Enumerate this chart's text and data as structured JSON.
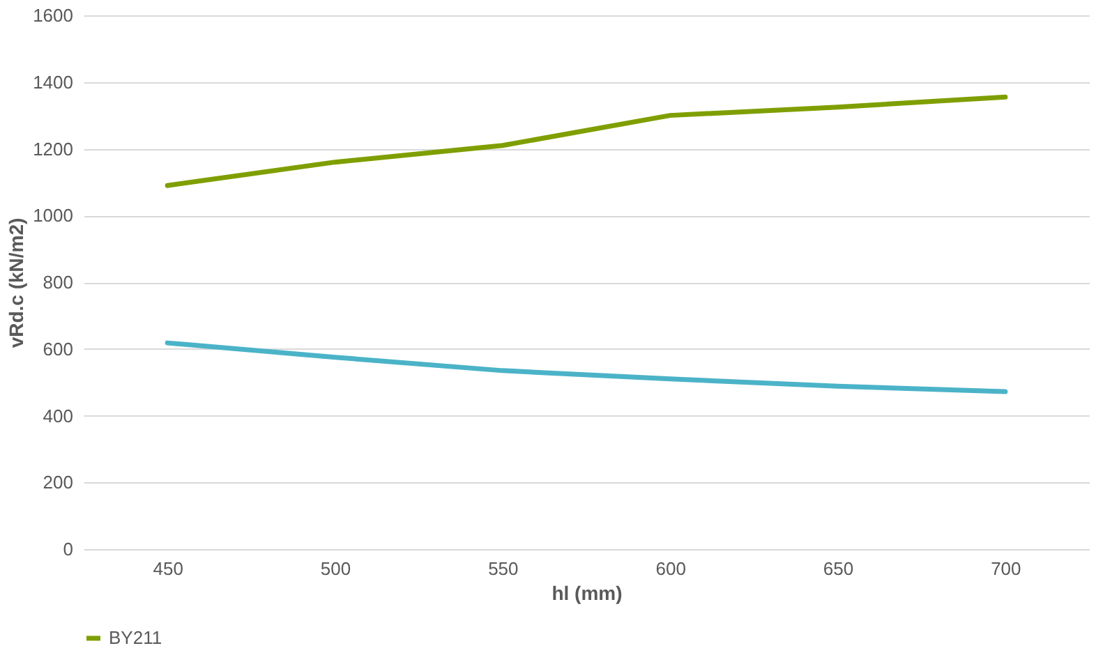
{
  "chart_data": {
    "type": "line",
    "xlabel": "hl (mm)",
    "ylabel": "vRd.c (kN/m2)",
    "categories": [
      "450",
      "500",
      "550",
      "600",
      "650",
      "700"
    ],
    "series": [
      {
        "color": "#4bb3c8",
        "values": [
          618,
          575,
          535,
          510,
          488,
          472
        ]
      },
      {
        "name": "BY211",
        "color": "#7f9f00",
        "values": [
          1090,
          1160,
          1210,
          1300,
          1325,
          1355
        ]
      }
    ],
    "ylim": [
      0,
      1600
    ],
    "yticks": [
      0,
      200,
      400,
      600,
      800,
      1000,
      1200,
      1400,
      1600
    ],
    "grid": "y",
    "legend": "bottom",
    "marker": "none",
    "line_style": "solid"
  }
}
